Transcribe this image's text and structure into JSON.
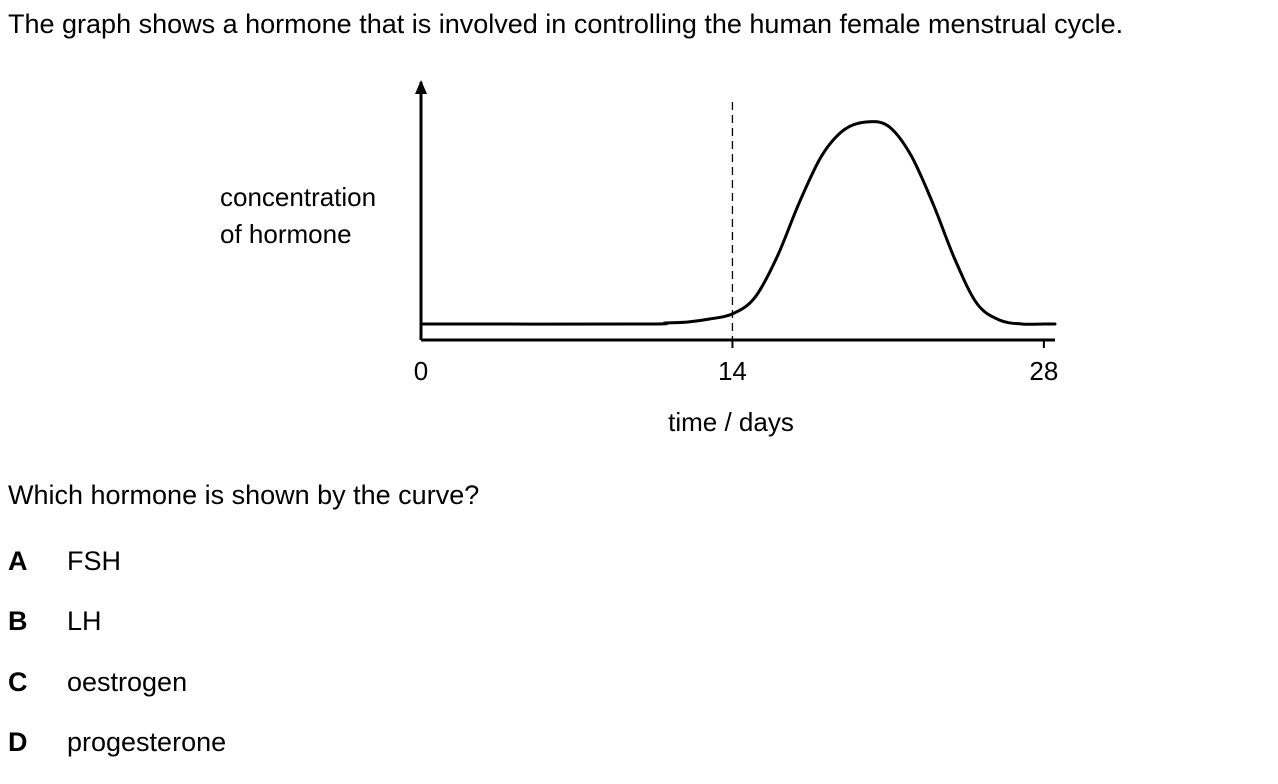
{
  "intro_text": "The graph shows a hormone that is involved in controlling the human female menstrual cycle.",
  "question_text": "Which hormone is shown by the curve?",
  "options": [
    {
      "letter": "A",
      "text": "FSH"
    },
    {
      "letter": "B",
      "text": "LH"
    },
    {
      "letter": "C",
      "text": "oestrogen"
    },
    {
      "letter": "D",
      "text": "progesterone"
    }
  ],
  "chart_data": {
    "type": "line",
    "title": "",
    "xlabel": "time / days",
    "ylabel_lines": [
      "concentration",
      "of hormone"
    ],
    "x_ticks": [
      0,
      14,
      28
    ],
    "xlim": [
      0,
      28.5
    ],
    "ylim": [
      0,
      10
    ],
    "reference_line": {
      "x": 14,
      "style": "dashed"
    },
    "grid": false,
    "legend": "none",
    "series": [
      {
        "x": [
          0,
          10,
          11,
          12,
          13,
          14,
          15,
          16,
          17,
          18,
          19,
          20,
          21,
          22,
          23,
          24,
          25,
          26,
          27,
          28,
          28.5
        ],
        "y": [
          0,
          0,
          0.05,
          0.1,
          0.25,
          0.5,
          1.3,
          3.3,
          6.0,
          8.3,
          9.6,
          10,
          9.8,
          8.4,
          6.0,
          3.2,
          1.0,
          0.2,
          0,
          0,
          0
        ]
      }
    ],
    "color": "#000000"
  }
}
